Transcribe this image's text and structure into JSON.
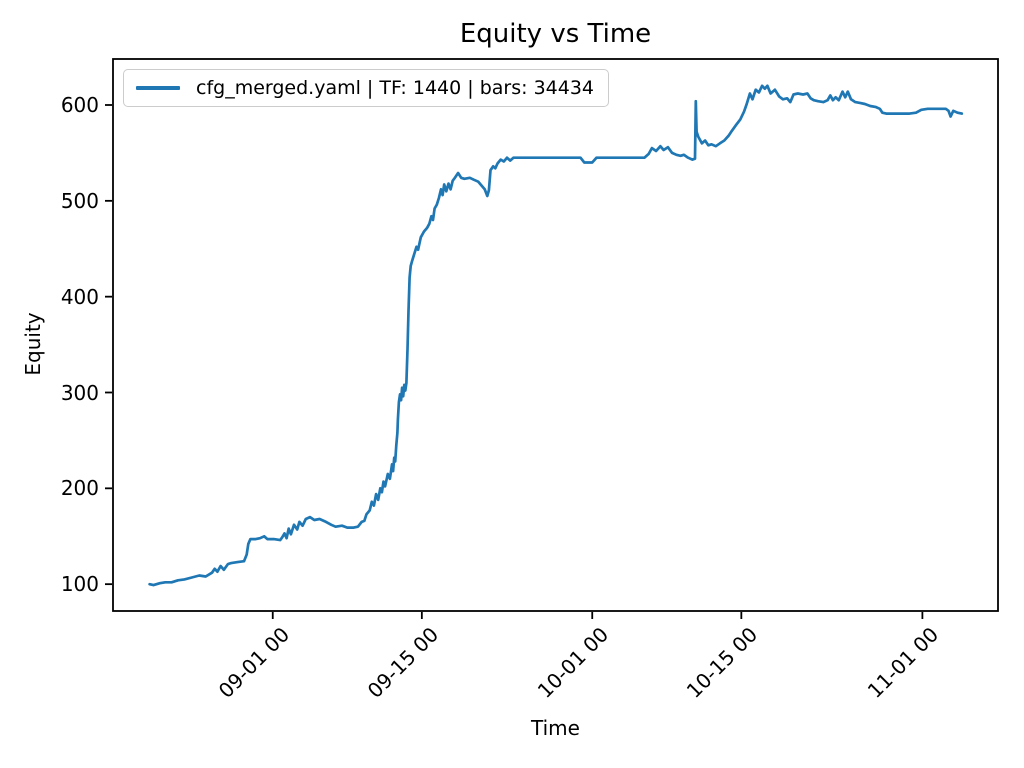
{
  "chart_data": {
    "type": "line",
    "title": "Equity vs Time",
    "xlabel": "Time",
    "ylabel": "Equity",
    "grid": false,
    "legend": {
      "position": "upper-left",
      "entries": [
        {
          "label": "cfg_merged.yaml | TF: 1440 | bars: 34434",
          "color": "#1f77b4"
        }
      ]
    },
    "x_axis": {
      "unit": "days relative to 09-01 00",
      "domain": [
        -15.0,
        68.1
      ],
      "ticks": [
        {
          "t": 0,
          "label": "09-01 00"
        },
        {
          "t": 14,
          "label": "09-15 00"
        },
        {
          "t": 30,
          "label": "10-01 00"
        },
        {
          "t": 44,
          "label": "10-15 00"
        },
        {
          "t": 61,
          "label": "11-01 00"
        }
      ]
    },
    "y_axis": {
      "domain": [
        72,
        648
      ],
      "ticks": [
        100,
        200,
        300,
        400,
        500,
        600
      ]
    },
    "series": [
      {
        "name": "cfg_merged.yaml | TF: 1440 | bars: 34434",
        "color": "#1f77b4",
        "line_width": 2.7,
        "points": [
          [
            -11.56,
            100
          ],
          [
            -11.2,
            99
          ],
          [
            -10.6,
            101
          ],
          [
            -10.1,
            102
          ],
          [
            -9.5,
            102
          ],
          [
            -8.9,
            104
          ],
          [
            -8.3,
            105
          ],
          [
            -7.6,
            107
          ],
          [
            -6.9,
            109
          ],
          [
            -6.3,
            108
          ],
          [
            -5.7,
            112
          ],
          [
            -5.45,
            116
          ],
          [
            -5.2,
            113
          ],
          [
            -4.9,
            119
          ],
          [
            -4.6,
            115
          ],
          [
            -4.2,
            121
          ],
          [
            -3.9,
            122
          ],
          [
            -3.3,
            123
          ],
          [
            -2.7,
            124
          ],
          [
            -2.45,
            131
          ],
          [
            -2.3,
            142
          ],
          [
            -2.1,
            147
          ],
          [
            -1.6,
            147
          ],
          [
            -1.2,
            148
          ],
          [
            -0.8,
            150
          ],
          [
            -0.5,
            147
          ],
          [
            0.1,
            147
          ],
          [
            0.7,
            146
          ],
          [
            0.9,
            149
          ],
          [
            1.1,
            153
          ],
          [
            1.3,
            148
          ],
          [
            1.5,
            158
          ],
          [
            1.7,
            152
          ],
          [
            2.0,
            162
          ],
          [
            2.3,
            157
          ],
          [
            2.5,
            165
          ],
          [
            2.8,
            161
          ],
          [
            3.1,
            168
          ],
          [
            3.5,
            170
          ],
          [
            3.9,
            167
          ],
          [
            4.4,
            168
          ],
          [
            5.0,
            165
          ],
          [
            5.5,
            162
          ],
          [
            5.9,
            160
          ],
          [
            6.5,
            161
          ],
          [
            7.0,
            159
          ],
          [
            7.6,
            159
          ],
          [
            8.0,
            160
          ],
          [
            8.35,
            165
          ],
          [
            8.6,
            166
          ],
          [
            8.8,
            173
          ],
          [
            9.1,
            177
          ],
          [
            9.3,
            186
          ],
          [
            9.5,
            182
          ],
          [
            9.7,
            194
          ],
          [
            9.9,
            188
          ],
          [
            10.1,
            200
          ],
          [
            10.25,
            196
          ],
          [
            10.4,
            207
          ],
          [
            10.55,
            202
          ],
          [
            10.8,
            215
          ],
          [
            11.0,
            210
          ],
          [
            11.2,
            225
          ],
          [
            11.3,
            218
          ],
          [
            11.4,
            232
          ],
          [
            11.5,
            228
          ],
          [
            11.6,
            245
          ],
          [
            11.7,
            258
          ],
          [
            11.75,
            272
          ],
          [
            11.85,
            290
          ],
          [
            11.95,
            298
          ],
          [
            12.05,
            292
          ],
          [
            12.15,
            305
          ],
          [
            12.25,
            296
          ],
          [
            12.35,
            308
          ],
          [
            12.45,
            302
          ],
          [
            12.55,
            310
          ],
          [
            12.65,
            345
          ],
          [
            12.75,
            385
          ],
          [
            12.85,
            420
          ],
          [
            12.95,
            432
          ],
          [
            13.1,
            438
          ],
          [
            13.3,
            445
          ],
          [
            13.5,
            452
          ],
          [
            13.65,
            449
          ],
          [
            13.9,
            462
          ],
          [
            14.2,
            468
          ],
          [
            14.5,
            472
          ],
          [
            14.7,
            476
          ],
          [
            14.9,
            484
          ],
          [
            15.05,
            480
          ],
          [
            15.2,
            492
          ],
          [
            15.4,
            496
          ],
          [
            15.6,
            503
          ],
          [
            15.8,
            512
          ],
          [
            15.95,
            506
          ],
          [
            16.1,
            517
          ],
          [
            16.3,
            510
          ],
          [
            16.5,
            518
          ],
          [
            16.7,
            512
          ],
          [
            16.9,
            521
          ],
          [
            17.1,
            524
          ],
          [
            17.4,
            529
          ],
          [
            17.7,
            524
          ],
          [
            18.0,
            523
          ],
          [
            18.5,
            524
          ],
          [
            18.9,
            522
          ],
          [
            19.3,
            520
          ],
          [
            19.6,
            516
          ],
          [
            19.9,
            512
          ],
          [
            20.15,
            505
          ],
          [
            20.3,
            511
          ],
          [
            20.45,
            532
          ],
          [
            20.7,
            536
          ],
          [
            20.9,
            534
          ],
          [
            21.1,
            539
          ],
          [
            21.4,
            543
          ],
          [
            21.7,
            541
          ],
          [
            22.0,
            545
          ],
          [
            22.3,
            542
          ],
          [
            22.6,
            545
          ],
          [
            23.2,
            545
          ],
          [
            25.0,
            545
          ],
          [
            27.0,
            545
          ],
          [
            28.9,
            545
          ],
          [
            29.25,
            540
          ],
          [
            30.0,
            540
          ],
          [
            30.4,
            545
          ],
          [
            32.5,
            545
          ],
          [
            34.9,
            545
          ],
          [
            35.3,
            549
          ],
          [
            35.6,
            555
          ],
          [
            36.0,
            552
          ],
          [
            36.4,
            557
          ],
          [
            36.7,
            553
          ],
          [
            37.1,
            556
          ],
          [
            37.5,
            550
          ],
          [
            37.9,
            548
          ],
          [
            38.3,
            547
          ],
          [
            38.6,
            548
          ],
          [
            39.0,
            545
          ],
          [
            39.4,
            543
          ],
          [
            39.65,
            544
          ],
          [
            39.72,
            604
          ],
          [
            39.8,
            572
          ],
          [
            39.95,
            567
          ],
          [
            40.3,
            560
          ],
          [
            40.6,
            563
          ],
          [
            40.9,
            558
          ],
          [
            41.2,
            559
          ],
          [
            41.6,
            557
          ],
          [
            42.0,
            560
          ],
          [
            42.4,
            563
          ],
          [
            42.8,
            568
          ],
          [
            43.1,
            573
          ],
          [
            43.5,
            579
          ],
          [
            43.9,
            585
          ],
          [
            44.25,
            593
          ],
          [
            44.5,
            601
          ],
          [
            44.8,
            612
          ],
          [
            45.05,
            606
          ],
          [
            45.35,
            616
          ],
          [
            45.65,
            613
          ],
          [
            45.95,
            620
          ],
          [
            46.2,
            617
          ],
          [
            46.45,
            620
          ],
          [
            46.75,
            612
          ],
          [
            47.15,
            616
          ],
          [
            47.55,
            609
          ],
          [
            47.9,
            606
          ],
          [
            48.3,
            607
          ],
          [
            48.6,
            603
          ],
          [
            48.9,
            611
          ],
          [
            49.3,
            612
          ],
          [
            49.8,
            611
          ],
          [
            50.2,
            612
          ],
          [
            50.5,
            607
          ],
          [
            50.8,
            605
          ],
          [
            51.2,
            604
          ],
          [
            51.7,
            603
          ],
          [
            52.1,
            605
          ],
          [
            52.35,
            610
          ],
          [
            52.6,
            605
          ],
          [
            52.85,
            608
          ],
          [
            53.15,
            605
          ],
          [
            53.5,
            614
          ],
          [
            53.75,
            608
          ],
          [
            54.0,
            614
          ],
          [
            54.3,
            606
          ],
          [
            54.7,
            603
          ],
          [
            55.2,
            602
          ],
          [
            55.6,
            601
          ],
          [
            56.1,
            599
          ],
          [
            56.6,
            598
          ],
          [
            57.0,
            596
          ],
          [
            57.25,
            592
          ],
          [
            57.6,
            591
          ],
          [
            58.2,
            591
          ],
          [
            59.0,
            591
          ],
          [
            59.8,
            591
          ],
          [
            60.4,
            592
          ],
          [
            60.9,
            595
          ],
          [
            61.5,
            596
          ],
          [
            62.1,
            596
          ],
          [
            62.7,
            596
          ],
          [
            63.2,
            596
          ],
          [
            63.45,
            594
          ],
          [
            63.65,
            588
          ],
          [
            63.9,
            594
          ],
          [
            64.3,
            592
          ],
          [
            64.7,
            591
          ]
        ]
      }
    ],
    "plot_style": {
      "spine_color": "#000000",
      "tick_color": "#000000",
      "background": "#ffffff"
    }
  }
}
